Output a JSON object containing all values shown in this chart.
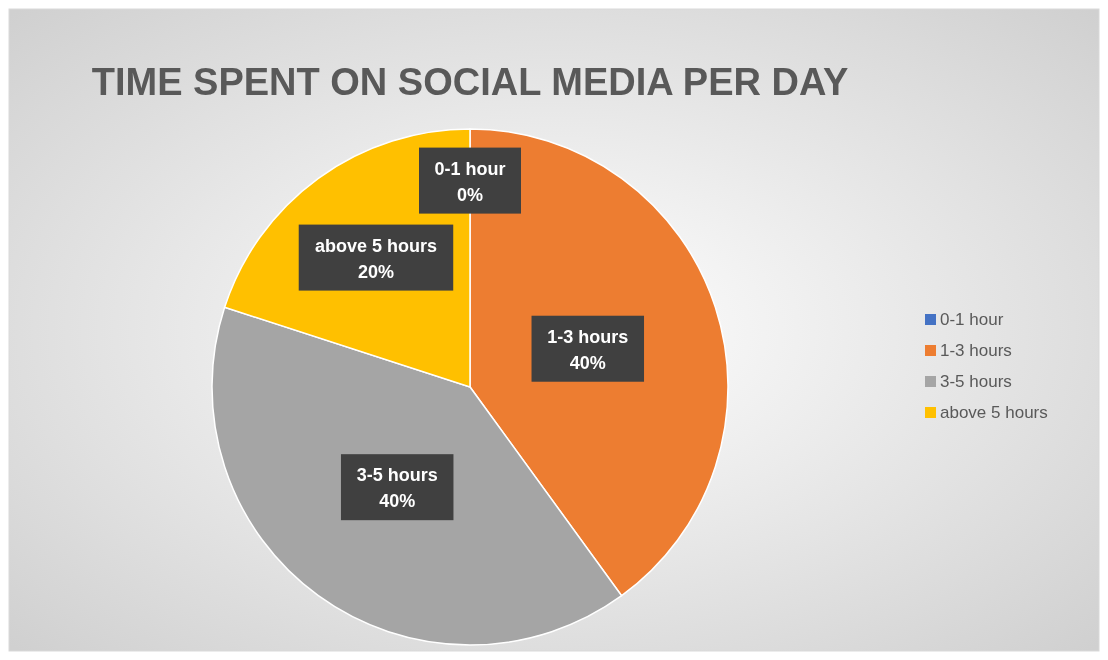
{
  "chart_data": {
    "type": "pie",
    "title": "TIME SPENT ON SOCIAL MEDIA PER DAY",
    "categories": [
      "0-1 hour",
      "1-3 hours",
      "3-5 hours",
      "above 5 hours"
    ],
    "values": [
      0,
      40,
      40,
      20
    ],
    "colors": [
      "#4472c4",
      "#ed7d31",
      "#a5a5a5",
      "#ffc000"
    ],
    "value_labels": [
      "0%",
      "40%",
      "40%",
      "20%"
    ],
    "legend": "right"
  }
}
